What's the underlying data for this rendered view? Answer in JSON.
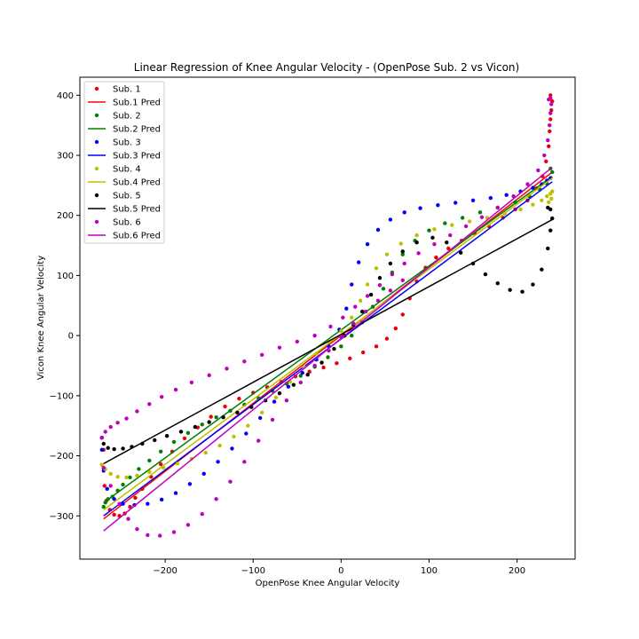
{
  "chart_data": {
    "type": "scatter",
    "title": "Linear Regression of Knee Angular Velocity - (OpenPose Sub. 2 vs Vicon)",
    "xlabel": "OpenPose Knee Angular Velocity",
    "ylabel": "Vicon Knee Angular Velocity",
    "xlim": [
      -297,
      266
    ],
    "ylim": [
      -372,
      430
    ],
    "xticks": [
      -200,
      -100,
      0,
      100,
      200
    ],
    "yticks": [
      -300,
      -200,
      -100,
      0,
      100,
      200,
      300,
      400
    ],
    "xtick_labels": [
      "−200",
      "−100",
      "0",
      "100",
      "200"
    ],
    "ytick_labels": [
      "−300",
      "−200",
      "−100",
      "0",
      "100",
      "200",
      "300",
      "400"
    ],
    "grid": false,
    "legend_position": "top-left",
    "series": [
      {
        "name": "Sub. 1",
        "kind": "scatter",
        "color": "#e8000b",
        "points": [
          [
            -270,
            -190
          ],
          [
            -270,
            -220
          ],
          [
            -269,
            -250
          ],
          [
            -267,
            -275
          ],
          [
            -263,
            -290
          ],
          [
            -258,
            -298
          ],
          [
            -252,
            -300
          ],
          [
            -246,
            -296
          ],
          [
            -240,
            -285
          ],
          [
            -234,
            -270
          ],
          [
            -226,
            -255
          ],
          [
            -216,
            -235
          ],
          [
            -205,
            -214
          ],
          [
            -192,
            -193
          ],
          [
            -178,
            -171
          ],
          [
            -163,
            -153
          ],
          [
            -148,
            -135
          ],
          [
            -132,
            -118
          ],
          [
            -116,
            -105
          ],
          [
            -100,
            -95
          ],
          [
            -84,
            -86
          ],
          [
            -68,
            -77
          ],
          [
            -52,
            -68
          ],
          [
            -36,
            -60
          ],
          [
            -20,
            -53
          ],
          [
            -5,
            -46
          ],
          [
            10,
            -38
          ],
          [
            25,
            -28
          ],
          [
            40,
            -18
          ],
          [
            52,
            -5
          ],
          [
            62,
            12
          ],
          [
            70,
            35
          ],
          [
            78,
            62
          ],
          [
            86,
            90
          ],
          [
            96,
            113
          ],
          [
            108,
            130
          ],
          [
            122,
            145
          ],
          [
            137,
            158
          ],
          [
            152,
            170
          ],
          [
            168,
            182
          ],
          [
            184,
            196
          ],
          [
            198,
            210
          ],
          [
            212,
            225
          ],
          [
            222,
            245
          ],
          [
            229,
            265
          ],
          [
            233,
            290
          ],
          [
            236,
            315
          ],
          [
            237,
            340
          ],
          [
            238,
            360
          ],
          [
            239,
            375
          ],
          [
            240,
            390
          ],
          [
            238,
            400
          ]
        ]
      },
      {
        "name": "Sub.1 Pred",
        "kind": "line",
        "color": "#ff0000",
        "points": [
          [
            -270,
            -305
          ],
          [
            240,
            272
          ]
        ]
      },
      {
        "name": "Sub. 2",
        "kind": "scatter",
        "color": "#007f00",
        "points": [
          [
            -270,
            -285
          ],
          [
            -268,
            -278
          ],
          [
            -265,
            -272
          ],
          [
            -260,
            -268
          ],
          [
            -254,
            -258
          ],
          [
            -248,
            -248
          ],
          [
            -240,
            -236
          ],
          [
            -230,
            -222
          ],
          [
            -218,
            -208
          ],
          [
            -205,
            -193
          ],
          [
            -190,
            -177
          ],
          [
            -174,
            -162
          ],
          [
            -158,
            -148
          ],
          [
            -142,
            -136
          ],
          [
            -126,
            -125
          ],
          [
            -110,
            -115
          ],
          [
            -94,
            -104
          ],
          [
            -78,
            -92
          ],
          [
            -62,
            -80
          ],
          [
            -46,
            -67
          ],
          [
            -30,
            -52
          ],
          [
            -15,
            -36
          ],
          [
            0,
            -18
          ],
          [
            12,
            0
          ],
          [
            24,
            22
          ],
          [
            36,
            48
          ],
          [
            48,
            78
          ],
          [
            58,
            105
          ],
          [
            70,
            135
          ],
          [
            84,
            158
          ],
          [
            100,
            175
          ],
          [
            118,
            187
          ],
          [
            138,
            196
          ],
          [
            158,
            205
          ],
          [
            178,
            213
          ],
          [
            198,
            222
          ],
          [
            214,
            232
          ],
          [
            226,
            243
          ],
          [
            234,
            253
          ],
          [
            238,
            262
          ],
          [
            240,
            272
          ],
          [
            238,
            278
          ]
        ]
      },
      {
        "name": "Sub.2 Pred",
        "kind": "line",
        "color": "#007f00",
        "points": [
          [
            -270,
            -278
          ],
          [
            240,
            265
          ]
        ]
      },
      {
        "name": "Sub. 3",
        "kind": "scatter",
        "color": "#0000ff",
        "points": [
          [
            -272,
            -190
          ],
          [
            -270,
            -225
          ],
          [
            -266,
            -255
          ],
          [
            -258,
            -272
          ],
          [
            -248,
            -280
          ],
          [
            -235,
            -282
          ],
          [
            -220,
            -280
          ],
          [
            -204,
            -273
          ],
          [
            -188,
            -262
          ],
          [
            -172,
            -247
          ],
          [
            -156,
            -230
          ],
          [
            -140,
            -210
          ],
          [
            -124,
            -188
          ],
          [
            -108,
            -163
          ],
          [
            -92,
            -137
          ],
          [
            -76,
            -110
          ],
          [
            -60,
            -85
          ],
          [
            -44,
            -62
          ],
          [
            -28,
            -40
          ],
          [
            -14,
            -18
          ],
          [
            -2,
            10
          ],
          [
            6,
            45
          ],
          [
            12,
            85
          ],
          [
            20,
            122
          ],
          [
            30,
            152
          ],
          [
            42,
            176
          ],
          [
            56,
            193
          ],
          [
            72,
            205
          ],
          [
            90,
            212
          ],
          [
            110,
            217
          ],
          [
            130,
            221
          ],
          [
            150,
            225
          ],
          [
            170,
            229
          ],
          [
            188,
            234
          ],
          [
            204,
            240
          ],
          [
            218,
            246
          ],
          [
            228,
            252
          ],
          [
            234,
            258
          ],
          [
            238,
            262
          ]
        ]
      },
      {
        "name": "Sub.3 Pred",
        "kind": "line",
        "color": "#0000ff",
        "points": [
          [
            -270,
            -300
          ],
          [
            240,
            256
          ]
        ]
      },
      {
        "name": "Sub. 4",
        "kind": "scatter",
        "color": "#bfbf00",
        "points": [
          [
            -272,
            -215
          ],
          [
            -268,
            -222
          ],
          [
            -262,
            -230
          ],
          [
            -254,
            -235
          ],
          [
            -244,
            -236
          ],
          [
            -232,
            -233
          ],
          [
            -218,
            -227
          ],
          [
            -202,
            -220
          ],
          [
            -186,
            -213
          ],
          [
            -170,
            -205
          ],
          [
            -154,
            -195
          ],
          [
            -138,
            -183
          ],
          [
            -122,
            -168
          ],
          [
            -106,
            -150
          ],
          [
            -90,
            -128
          ],
          [
            -74,
            -103
          ],
          [
            -58,
            -77
          ],
          [
            -42,
            -52
          ],
          [
            -28,
            -30
          ],
          [
            -14,
            -10
          ],
          [
            0,
            8
          ],
          [
            12,
            30
          ],
          [
            22,
            58
          ],
          [
            30,
            85
          ],
          [
            40,
            112
          ],
          [
            52,
            135
          ],
          [
            68,
            153
          ],
          [
            86,
            167
          ],
          [
            106,
            177
          ],
          [
            126,
            184
          ],
          [
            146,
            190
          ],
          [
            166,
            196
          ],
          [
            186,
            203
          ],
          [
            204,
            210
          ],
          [
            218,
            218
          ],
          [
            228,
            225
          ],
          [
            234,
            232
          ],
          [
            238,
            236
          ],
          [
            240,
            240
          ],
          [
            239,
            228
          ],
          [
            236,
            222
          ]
        ]
      },
      {
        "name": "Sub.4 Pred",
        "kind": "line",
        "color": "#bfbf00",
        "points": [
          [
            -270,
            -290
          ],
          [
            240,
            262
          ]
        ]
      },
      {
        "name": "Sub. 5",
        "kind": "scatter",
        "color": "#000000",
        "points": [
          [
            -272,
            -170
          ],
          [
            -270,
            -180
          ],
          [
            -265,
            -187
          ],
          [
            -258,
            -189
          ],
          [
            -248,
            -188
          ],
          [
            -238,
            -185
          ],
          [
            -226,
            -180
          ],
          [
            -212,
            -174
          ],
          [
            -198,
            -167
          ],
          [
            -182,
            -160
          ],
          [
            -166,
            -152
          ],
          [
            -150,
            -144
          ],
          [
            -134,
            -136
          ],
          [
            -118,
            -128
          ],
          [
            -102,
            -119
          ],
          [
            -86,
            -108
          ],
          [
            -70,
            -96
          ],
          [
            -54,
            -82
          ],
          [
            -38,
            -65
          ],
          [
            -22,
            -45
          ],
          [
            -8,
            -22
          ],
          [
            4,
            0
          ],
          [
            14,
            18
          ],
          [
            24,
            40
          ],
          [
            34,
            68
          ],
          [
            44,
            96
          ],
          [
            56,
            120
          ],
          [
            70,
            140
          ],
          [
            86,
            155
          ],
          [
            104,
            163
          ],
          [
            120,
            155
          ],
          [
            136,
            138
          ],
          [
            150,
            120
          ],
          [
            164,
            102
          ],
          [
            178,
            87
          ],
          [
            192,
            76
          ],
          [
            206,
            73
          ],
          [
            218,
            85
          ],
          [
            228,
            110
          ],
          [
            235,
            145
          ],
          [
            238,
            175
          ],
          [
            240,
            195
          ],
          [
            238,
            210
          ],
          [
            235,
            213
          ]
        ]
      },
      {
        "name": "Sub.5 Pred",
        "kind": "line",
        "color": "#000000",
        "points": [
          [
            -270,
            -213
          ],
          [
            240,
            193
          ]
        ]
      },
      {
        "name": "Sub. 6",
        "kind": "scatter",
        "color": "#bf00bf",
        "points": [
          [
            -272,
            -170
          ],
          [
            -268,
            -160
          ],
          [
            -262,
            -152
          ],
          [
            -254,
            -145
          ],
          [
            -244,
            -138
          ],
          [
            -232,
            -126
          ],
          [
            -218,
            -114
          ],
          [
            -204,
            -102
          ],
          [
            -188,
            -90
          ],
          [
            -170,
            -78
          ],
          [
            -150,
            -66
          ],
          [
            -130,
            -55
          ],
          [
            -110,
            -43
          ],
          [
            -90,
            -32
          ],
          [
            -70,
            -20
          ],
          [
            -50,
            -10
          ],
          [
            -30,
            0
          ],
          [
            -12,
            15
          ],
          [
            2,
            30
          ],
          [
            16,
            48
          ],
          [
            30,
            66
          ],
          [
            44,
            84
          ],
          [
            58,
            102
          ],
          [
            72,
            120
          ],
          [
            88,
            137
          ],
          [
            106,
            152
          ],
          [
            124,
            167
          ],
          [
            142,
            182
          ],
          [
            160,
            197
          ],
          [
            178,
            213
          ],
          [
            196,
            232
          ],
          [
            212,
            252
          ],
          [
            224,
            275
          ],
          [
            231,
            300
          ],
          [
            235,
            325
          ],
          [
            237,
            350
          ],
          [
            238,
            370
          ],
          [
            239,
            385
          ],
          [
            238,
            395
          ],
          [
            236,
            393
          ],
          [
            -270,
            -220
          ],
          [
            -262,
            -250
          ],
          [
            -252,
            -280
          ],
          [
            -242,
            -305
          ],
          [
            -232,
            -322
          ],
          [
            -220,
            -332
          ],
          [
            -206,
            -333
          ],
          [
            -190,
            -327
          ],
          [
            -174,
            -315
          ],
          [
            -158,
            -297
          ],
          [
            -142,
            -272
          ],
          [
            -126,
            -243
          ],
          [
            -110,
            -210
          ],
          [
            -94,
            -175
          ],
          [
            -78,
            -140
          ],
          [
            -62,
            -108
          ],
          [
            -46,
            -78
          ],
          [
            -30,
            -50
          ],
          [
            -14,
            -25
          ],
          [
            0,
            -2
          ],
          [
            14,
            20
          ],
          [
            28,
            40
          ],
          [
            42,
            58
          ],
          [
            56,
            75
          ],
          [
            70,
            92
          ]
        ]
      },
      {
        "name": "Sub.6 Pred",
        "kind": "line",
        "color": "#bf00bf",
        "points": [
          [
            -270,
            -325
          ],
          [
            240,
            280
          ]
        ]
      }
    ]
  }
}
